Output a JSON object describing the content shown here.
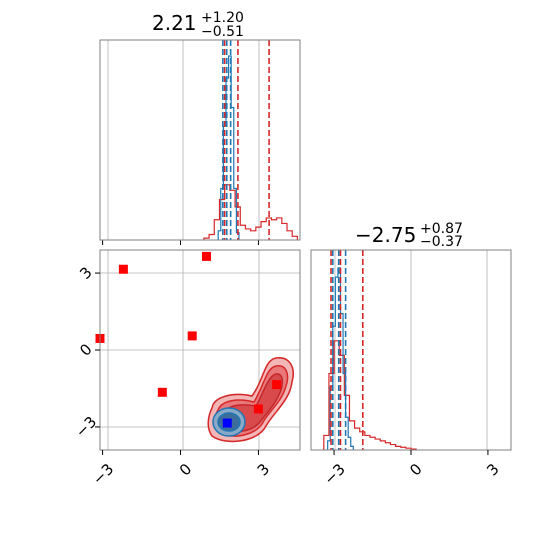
{
  "colors": {
    "blue": "#1f77b4",
    "red": "#d62728",
    "marker_red": "#ff0000",
    "marker_blue": "#0000ff"
  },
  "chart_data": {
    "type": "corner",
    "parameters": [
      {
        "title_main": "2.21",
        "title_plus": "+1.20",
        "title_minus": "−0.51"
      },
      {
        "title_main": "−2.75",
        "title_plus": "+0.87",
        "title_minus": "−0.37"
      }
    ],
    "range_p1": [
      -3.1,
      4.6
    ],
    "range_p2": [
      -3.9,
      3.9
    ],
    "ticks_p1": [
      {
        "v": -3,
        "label": "−3"
      },
      {
        "v": 0,
        "label": "0"
      },
      {
        "v": 3,
        "label": "3"
      }
    ],
    "ticks_p2": [
      {
        "v": -3,
        "label": "−3"
      },
      {
        "v": 0,
        "label": "0"
      },
      {
        "v": 3,
        "label": "3"
      }
    ],
    "hist1": {
      "blue": {
        "x": [
          1.5,
          1.6,
          1.7,
          1.8,
          1.9,
          2.0,
          2.1,
          2.2
        ],
        "y": [
          0.05,
          0.28,
          0.62,
          0.88,
          1.0,
          0.72,
          0.28,
          0.04
        ]
      },
      "red": {
        "x": [
          1.0,
          1.2,
          1.4,
          1.6,
          1.8,
          2.0,
          2.2,
          2.4,
          2.6,
          2.8,
          3.0,
          3.2,
          3.4,
          3.6,
          3.8,
          4.0,
          4.2,
          4.4
        ],
        "y": [
          0.01,
          0.03,
          0.11,
          0.22,
          0.3,
          0.27,
          0.18,
          0.08,
          0.06,
          0.05,
          0.07,
          0.1,
          0.12,
          0.11,
          0.12,
          0.09,
          0.05,
          0.02
        ]
      },
      "blue_quantiles": [
        1.63,
        1.78,
        1.93
      ],
      "red_quantiles": [
        1.7,
        2.21,
        3.41
      ]
    },
    "hist2": {
      "blue": {
        "x": [
          -3.2,
          -3.1,
          -3.0,
          -2.9,
          -2.8,
          -2.7,
          -2.6,
          -2.5,
          -2.4,
          -2.3
        ],
        "y": [
          0.05,
          0.35,
          0.68,
          0.95,
          1.0,
          0.75,
          0.42,
          0.18,
          0.07,
          0.02
        ]
      },
      "red": {
        "x": [
          -3.3,
          -3.1,
          -2.9,
          -2.7,
          -2.5,
          -2.3,
          -2.1,
          -1.9,
          -1.7,
          -1.5,
          -1.3,
          -1.1,
          -0.9,
          -0.7,
          -0.5,
          -0.3,
          -0.1,
          0.1
        ],
        "y": [
          0.08,
          0.42,
          0.6,
          0.52,
          0.3,
          0.16,
          0.12,
          0.1,
          0.08,
          0.07,
          0.06,
          0.05,
          0.04,
          0.03,
          0.02,
          0.015,
          0.01,
          0.005
        ]
      },
      "blue_quantiles": [
        -3.05,
        -2.82,
        -2.55
      ],
      "red_quantiles": [
        -3.12,
        -2.75,
        -1.88
      ]
    },
    "scatter_points": [
      {
        "x": -3.1,
        "y": 0.45
      },
      {
        "x": -2.2,
        "y": 3.15
      },
      {
        "x": -0.7,
        "y": -1.65
      },
      {
        "x": 0.45,
        "y": 0.55
      },
      {
        "x": 1.0,
        "y": 3.65
      },
      {
        "x": 3.0,
        "y": -2.3
      },
      {
        "x": 3.7,
        "y": -1.35
      }
    ],
    "median_point": {
      "x": 1.8,
      "y": -2.85
    }
  }
}
